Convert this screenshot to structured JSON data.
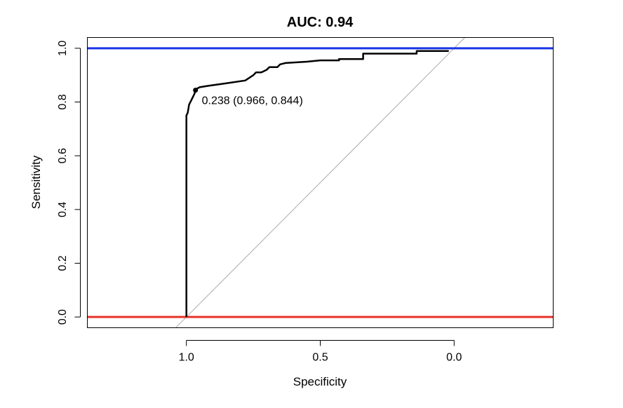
{
  "chart_data": {
    "type": "line",
    "title": "AUC: 0.94",
    "xlabel": "Specificity",
    "ylabel": "Sensitivity",
    "xlim": [
      1.37,
      -0.37
    ],
    "ylim": [
      -0.04,
      1.04
    ],
    "x_reversed": true,
    "x_ticks": [
      1.0,
      0.5,
      0.0
    ],
    "x_tick_labels": [
      "1.0",
      "0.5",
      "0.0"
    ],
    "y_ticks": [
      0.0,
      0.2,
      0.4,
      0.6,
      0.8,
      1.0
    ],
    "y_tick_labels": [
      "0.0",
      "0.2",
      "0.4",
      "0.6",
      "0.8",
      "1.0"
    ],
    "grid": false,
    "series": [
      {
        "color": "#000000",
        "x": [
          1.0,
          1.0,
          0.995,
          0.99,
          0.985,
          0.98,
          0.975,
          0.97,
          0.966,
          0.96,
          0.95,
          0.92,
          0.85,
          0.78,
          0.75,
          0.74,
          0.72,
          0.7,
          0.69,
          0.66,
          0.65,
          0.63,
          0.55,
          0.5,
          0.43,
          0.43,
          0.34,
          0.34,
          0.14,
          0.14,
          0.02
        ],
        "y": [
          0.0,
          0.75,
          0.76,
          0.79,
          0.8,
          0.81,
          0.82,
          0.83,
          0.844,
          0.85,
          0.855,
          0.86,
          0.87,
          0.88,
          0.9,
          0.91,
          0.91,
          0.92,
          0.93,
          0.93,
          0.94,
          0.945,
          0.95,
          0.955,
          0.955,
          0.96,
          0.96,
          0.98,
          0.98,
          0.99,
          0.99
        ]
      }
    ],
    "reference_lines": [
      {
        "type": "diagonal",
        "color": "#aaaaaa"
      },
      {
        "type": "horizontal",
        "y": 1.0,
        "color": "#1a35e6"
      },
      {
        "type": "horizontal",
        "y": 0.0,
        "color": "#e8332a"
      }
    ],
    "annotations": [
      {
        "x": 0.966,
        "y": 0.844,
        "text": "0.238 (0.966, 0.844)"
      }
    ]
  }
}
